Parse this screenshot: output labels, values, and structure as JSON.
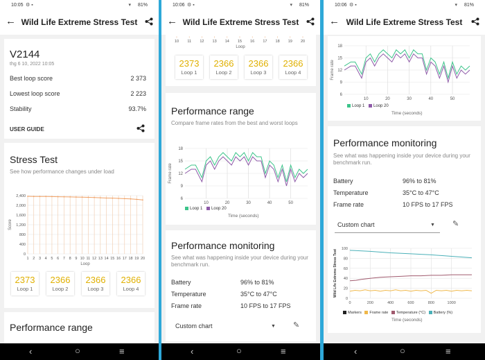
{
  "screens": [
    {
      "status": {
        "time": "10:05",
        "battery": "81%"
      },
      "app_bar": {
        "title": "Wild Life Extreme Stress Test"
      },
      "device": {
        "name": "V2144",
        "date": "thg 6 10, 2022 10:05"
      },
      "summary": [
        {
          "label": "Best loop score",
          "value": "2 373"
        },
        {
          "label": "Lowest loop score",
          "value": "2 223"
        },
        {
          "label": "Stability",
          "value": "93.7%"
        }
      ],
      "user_guide": "USER GUIDE",
      "stress": {
        "title": "Stress Test",
        "subtitle": "See how performance changes under load"
      },
      "loops": [
        {
          "value": "2373",
          "label": "Loop 1"
        },
        {
          "value": "2366",
          "label": "Loop 2"
        },
        {
          "value": "2366",
          "label": "Loop 3"
        },
        {
          "value": "2366",
          "label": "Loop 4"
        }
      ],
      "next_title": "Performance range"
    },
    {
      "status": {
        "time": "10:06",
        "battery": "81%"
      },
      "app_bar": {
        "title": "Wild Life Extreme Stress Test"
      },
      "loops": [
        {
          "value": "2373",
          "label": "Loop 1"
        },
        {
          "value": "2366",
          "label": "Loop 2"
        },
        {
          "value": "2366",
          "label": "Loop 3"
        },
        {
          "value": "2366",
          "label": "Loop 4"
        }
      ],
      "range": {
        "title": "Performance range",
        "subtitle": "Compare frame rates from the best and worst loops"
      },
      "monitoring": {
        "title": "Performance monitoring",
        "subtitle": "See what was happening inside your device during your benchmark run.",
        "rows": [
          {
            "label": "Battery",
            "value": "96% to 81%"
          },
          {
            "label": "Temperature",
            "value": "35°C to 47°C"
          },
          {
            "label": "Frame rate",
            "value": "10 FPS to 17 FPS"
          }
        ],
        "dropdown": "Custom chart"
      }
    },
    {
      "status": {
        "time": "10:06",
        "battery": "81%"
      },
      "app_bar": {
        "title": "Wild Life Extreme Stress Test"
      },
      "monitoring": {
        "title": "Performance monitoring",
        "subtitle": "See what was happening inside your device during your benchmark run.",
        "rows": [
          {
            "label": "Battery",
            "value": "96% to 81%"
          },
          {
            "label": "Temperature",
            "value": "35°C to 47°C"
          },
          {
            "label": "Frame rate",
            "value": "10 FPS to 17 FPS"
          }
        ],
        "dropdown": "Custom chart"
      }
    }
  ],
  "chart_data": [
    {
      "id": "stress-test-score",
      "type": "line",
      "ylabel": "Score",
      "xlabel": "Loop",
      "x": [
        1,
        2,
        3,
        4,
        5,
        6,
        7,
        8,
        9,
        10,
        11,
        12,
        13,
        14,
        15,
        16,
        17,
        18,
        19,
        20
      ],
      "y_ticks": [
        "2,400",
        "2,000",
        "1,600",
        "1,200",
        "800",
        "400",
        "0"
      ],
      "ylim": [
        0,
        2400
      ],
      "x_partial_ticks": [
        10,
        11,
        12,
        13,
        14,
        15,
        16,
        17,
        18,
        19,
        20
      ],
      "x_partial_ylim": [
        0,
        20
      ],
      "series": [
        {
          "name": "",
          "values": [
            2373,
            2366,
            2366,
            2366,
            2360,
            2355,
            2350,
            2345,
            2340,
            2335,
            2330,
            2320,
            2310,
            2300,
            2295,
            2285,
            2275,
            2265,
            2245,
            2223
          ],
          "color": "#f0a064"
        }
      ]
    },
    {
      "id": "frame-rate-loops",
      "type": "line",
      "ylabel": "Frame rate",
      "xlabel": "Time (seconds)",
      "y_ticks": [
        18,
        15,
        12,
        9,
        6
      ],
      "ylim": [
        6,
        18
      ],
      "x_ticks": [
        10,
        20,
        30,
        40,
        50
      ],
      "xlim": [
        0,
        58
      ],
      "series": [
        {
          "name": "Loop 1",
          "color": "#3cc48a",
          "x": [
            0,
            3,
            5,
            8,
            10,
            12,
            14,
            16,
            18,
            20,
            22,
            24,
            26,
            28,
            30,
            32,
            34,
            36,
            38,
            40,
            42,
            44,
            46,
            48,
            50,
            52,
            54,
            56,
            58
          ],
          "values": [
            13,
            14,
            14,
            11,
            15,
            16,
            14,
            16,
            17,
            16,
            15,
            17,
            16,
            17,
            15,
            17,
            16,
            16,
            12,
            15,
            14,
            11,
            14,
            10,
            14,
            11,
            13,
            12,
            13
          ]
        },
        {
          "name": "Loop 20",
          "color": "#8e5aa8",
          "x": [
            0,
            3,
            5,
            8,
            10,
            12,
            14,
            16,
            18,
            20,
            22,
            24,
            26,
            28,
            30,
            32,
            34,
            36,
            38,
            40,
            42,
            44,
            46,
            48,
            50,
            52,
            54,
            56,
            58
          ],
          "values": [
            12,
            13,
            13,
            10,
            14,
            15,
            13,
            15,
            16,
            15,
            14,
            16,
            15,
            16,
            14,
            16,
            15,
            15,
            11,
            14,
            13,
            10,
            13,
            9,
            13,
            10,
            12,
            11,
            12
          ]
        }
      ]
    },
    {
      "id": "custom-monitoring",
      "type": "line",
      "ylabel": "Wild Life Extreme Stress Test",
      "xlabel": "Time (seconds)",
      "y_ticks": [
        100,
        80,
        60,
        40,
        20,
        0
      ],
      "ylim": [
        0,
        100
      ],
      "x_ticks": [
        0,
        200,
        400,
        600,
        800,
        1000
      ],
      "xlim": [
        0,
        1200
      ],
      "series": [
        {
          "name": "Markers",
          "color": "#222222",
          "x": [],
          "values": []
        },
        {
          "name": "Frame rate",
          "color": "#f0b84a",
          "x": [
            0,
            50,
            100,
            150,
            200,
            250,
            300,
            350,
            400,
            450,
            500,
            550,
            600,
            650,
            700,
            750,
            800,
            850,
            900,
            950,
            1000,
            1050,
            1100,
            1150,
            1200
          ],
          "values": [
            14,
            16,
            15,
            17,
            15,
            16,
            14,
            16,
            15,
            17,
            15,
            16,
            14,
            16,
            15,
            16,
            10,
            16,
            15,
            16,
            14,
            16,
            15,
            16,
            15
          ]
        },
        {
          "name": "Temperature (°C)",
          "color": "#a05a6e",
          "x": [
            0,
            60,
            120,
            200,
            300,
            400,
            500,
            600,
            700,
            800,
            900,
            1000,
            1100,
            1200
          ],
          "values": [
            35,
            36,
            38,
            40,
            42,
            43,
            44,
            45,
            45,
            46,
            46,
            47,
            47,
            47
          ]
        },
        {
          "name": "Battery (%)",
          "color": "#4ab0b8",
          "x": [
            0,
            200,
            400,
            600,
            800,
            1000,
            1200
          ],
          "values": [
            96,
            94,
            91,
            89,
            87,
            84,
            81
          ]
        }
      ]
    }
  ]
}
